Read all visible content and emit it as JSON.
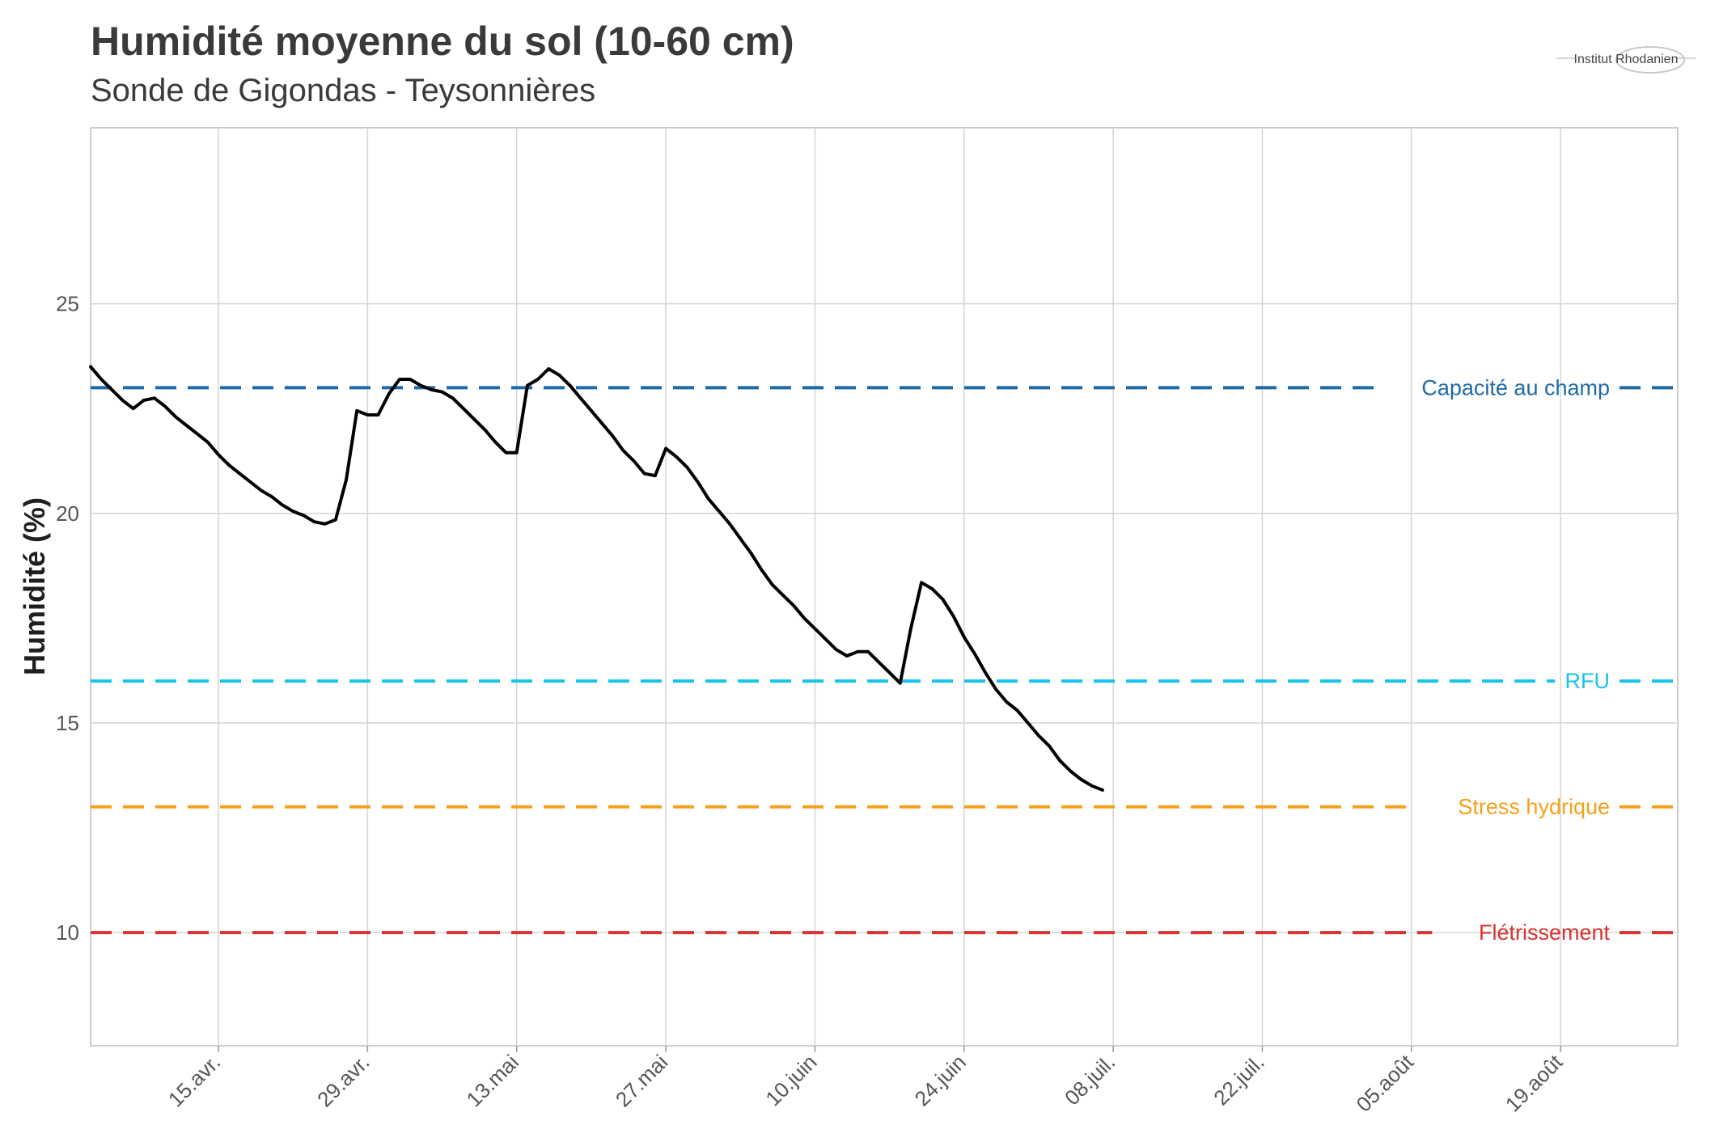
{
  "chart_data": {
    "type": "line",
    "title": "Humidité moyenne du sol (10-60 cm)",
    "subtitle": "Sonde de Gigondas - Teysonnières",
    "ylabel": "Humidité (%)",
    "xlim": [
      "2025-04-03",
      "2025-08-30"
    ],
    "ylim": [
      7.3,
      29.2
    ],
    "yticks": [
      10,
      15,
      20,
      25
    ],
    "xticks": [
      {
        "date": "2025-04-15",
        "label": "15.avr."
      },
      {
        "date": "2025-04-29",
        "label": "29.avr."
      },
      {
        "date": "2025-05-13",
        "label": "13.mai"
      },
      {
        "date": "2025-05-27",
        "label": "27.mai"
      },
      {
        "date": "2025-06-10",
        "label": "10.juin"
      },
      {
        "date": "2025-06-24",
        "label": "24.juin"
      },
      {
        "date": "2025-07-08",
        "label": "08.juil."
      },
      {
        "date": "2025-07-22",
        "label": "22.juil."
      },
      {
        "date": "2025-08-05",
        "label": "05.août"
      },
      {
        "date": "2025-08-19",
        "label": "19.août"
      }
    ],
    "grid": true,
    "series": [
      {
        "color": "#000000",
        "points": [
          [
            "2025-04-03",
            23.5
          ],
          [
            "2025-04-04",
            23.2
          ],
          [
            "2025-04-05",
            22.95
          ],
          [
            "2025-04-06",
            22.7
          ],
          [
            "2025-04-07",
            22.5
          ],
          [
            "2025-04-08",
            22.7
          ],
          [
            "2025-04-09",
            22.75
          ],
          [
            "2025-04-10",
            22.55
          ],
          [
            "2025-04-11",
            22.3
          ],
          [
            "2025-04-12",
            22.1
          ],
          [
            "2025-04-13",
            21.9
          ],
          [
            "2025-04-14",
            21.7
          ],
          [
            "2025-04-15",
            21.4
          ],
          [
            "2025-04-16",
            21.15
          ],
          [
            "2025-04-17",
            20.95
          ],
          [
            "2025-04-18",
            20.75
          ],
          [
            "2025-04-19",
            20.55
          ],
          [
            "2025-04-20",
            20.4
          ],
          [
            "2025-04-21",
            20.2
          ],
          [
            "2025-04-22",
            20.05
          ],
          [
            "2025-04-23",
            19.95
          ],
          [
            "2025-04-24",
            19.8
          ],
          [
            "2025-04-25",
            19.75
          ],
          [
            "2025-04-26",
            19.85
          ],
          [
            "2025-04-27",
            20.8
          ],
          [
            "2025-04-28",
            22.45
          ],
          [
            "2025-04-29",
            22.35
          ],
          [
            "2025-04-30",
            22.35
          ],
          [
            "2025-05-01",
            22.85
          ],
          [
            "2025-05-02",
            23.2
          ],
          [
            "2025-05-03",
            23.2
          ],
          [
            "2025-05-04",
            23.05
          ],
          [
            "2025-05-05",
            22.95
          ],
          [
            "2025-05-06",
            22.9
          ],
          [
            "2025-05-07",
            22.75
          ],
          [
            "2025-05-08",
            22.5
          ],
          [
            "2025-05-09",
            22.25
          ],
          [
            "2025-05-10",
            22.0
          ],
          [
            "2025-05-11",
            21.7
          ],
          [
            "2025-05-12",
            21.45
          ],
          [
            "2025-05-13",
            21.45
          ],
          [
            "2025-05-14",
            23.05
          ],
          [
            "2025-05-15",
            23.2
          ],
          [
            "2025-05-16",
            23.45
          ],
          [
            "2025-05-17",
            23.3
          ],
          [
            "2025-05-18",
            23.05
          ],
          [
            "2025-05-19",
            22.75
          ],
          [
            "2025-05-20",
            22.45
          ],
          [
            "2025-05-21",
            22.15
          ],
          [
            "2025-05-22",
            21.85
          ],
          [
            "2025-05-23",
            21.5
          ],
          [
            "2025-05-24",
            21.25
          ],
          [
            "2025-05-25",
            20.95
          ],
          [
            "2025-05-26",
            20.9
          ],
          [
            "2025-05-27",
            21.55
          ],
          [
            "2025-05-28",
            21.35
          ],
          [
            "2025-05-29",
            21.1
          ],
          [
            "2025-05-30",
            20.75
          ],
          [
            "2025-05-31",
            20.35
          ],
          [
            "2025-06-01",
            20.05
          ],
          [
            "2025-06-02",
            19.75
          ],
          [
            "2025-06-03",
            19.4
          ],
          [
            "2025-06-04",
            19.05
          ],
          [
            "2025-06-05",
            18.65
          ],
          [
            "2025-06-06",
            18.3
          ],
          [
            "2025-06-07",
            18.05
          ],
          [
            "2025-06-08",
            17.8
          ],
          [
            "2025-06-09",
            17.5
          ],
          [
            "2025-06-10",
            17.25
          ],
          [
            "2025-06-11",
            17.0
          ],
          [
            "2025-06-12",
            16.75
          ],
          [
            "2025-06-13",
            16.6
          ],
          [
            "2025-06-14",
            16.7
          ],
          [
            "2025-06-15",
            16.7
          ],
          [
            "2025-06-16",
            16.45
          ],
          [
            "2025-06-17",
            16.2
          ],
          [
            "2025-06-18",
            15.95
          ],
          [
            "2025-06-19",
            17.25
          ],
          [
            "2025-06-20",
            18.35
          ],
          [
            "2025-06-21",
            18.2
          ],
          [
            "2025-06-22",
            17.95
          ],
          [
            "2025-06-23",
            17.55
          ],
          [
            "2025-06-24",
            17.05
          ],
          [
            "2025-06-25",
            16.65
          ],
          [
            "2025-06-26",
            16.2
          ],
          [
            "2025-06-27",
            15.8
          ],
          [
            "2025-06-28",
            15.5
          ],
          [
            "2025-06-29",
            15.3
          ],
          [
            "2025-06-30",
            15.0
          ],
          [
            "2025-07-01",
            14.7
          ],
          [
            "2025-07-02",
            14.45
          ],
          [
            "2025-07-03",
            14.1
          ],
          [
            "2025-07-04",
            13.85
          ],
          [
            "2025-07-05",
            13.65
          ],
          [
            "2025-07-06",
            13.5
          ],
          [
            "2025-07-07",
            13.4
          ]
        ]
      }
    ],
    "reference_lines": [
      {
        "label": "Capacité au champ",
        "value": 23,
        "color": "#1f6aa5"
      },
      {
        "label": "RFU",
        "value": 16,
        "color": "#17c4e8"
      },
      {
        "label": "Stress hydrique",
        "value": 13,
        "color": "#f5a11c"
      },
      {
        "label": "Flétrissement",
        "value": 10,
        "color": "#d93232"
      }
    ]
  },
  "branding": {
    "logo_text": "Institut Rhodanien"
  }
}
